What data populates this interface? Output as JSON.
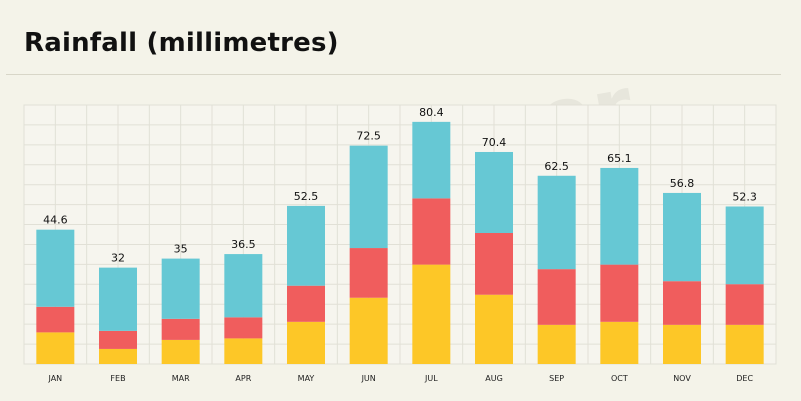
{
  "header": {
    "title": "Rainfall (millimetres)"
  },
  "colors": {
    "background": "#f4f3e9",
    "plot_background": "#f6f5ee",
    "grid": "#e1e0d6",
    "bottom": "#fdc727",
    "middle": "#f05d5d",
    "top": "#66c8d4"
  },
  "chart_data": {
    "type": "bar",
    "stacked": true,
    "categories": [
      "JAN",
      "FEB",
      "MAR",
      "APR",
      "MAY",
      "JUN",
      "JUL",
      "AUG",
      "SEP",
      "OCT",
      "NOV",
      "DEC"
    ],
    "totals": [
      44.6,
      32,
      35,
      36.5,
      52.5,
      72.5,
      80.4,
      70.4,
      62.5,
      65.1,
      56.8,
      52.3
    ],
    "series": [
      {
        "color": "#fdc727",
        "values": [
          10.5,
          5,
          8,
          8.5,
          14,
          22,
          33,
          23,
          13,
          14,
          13,
          13
        ]
      },
      {
        "color": "#f05d5d",
        "values": [
          8.5,
          6,
          7,
          7,
          12,
          16.5,
          22,
          20.5,
          18.5,
          19,
          14.5,
          13.5
        ]
      },
      {
        "color": "#66c8d4",
        "values": [
          25.6,
          21,
          20,
          21,
          26.5,
          34,
          25.4,
          26.9,
          31,
          32.1,
          29.3,
          25.8
        ]
      }
    ],
    "ylim": [
      0,
      86
    ],
    "grid": true,
    "legend": "none",
    "data_labels": "totals above bars"
  }
}
